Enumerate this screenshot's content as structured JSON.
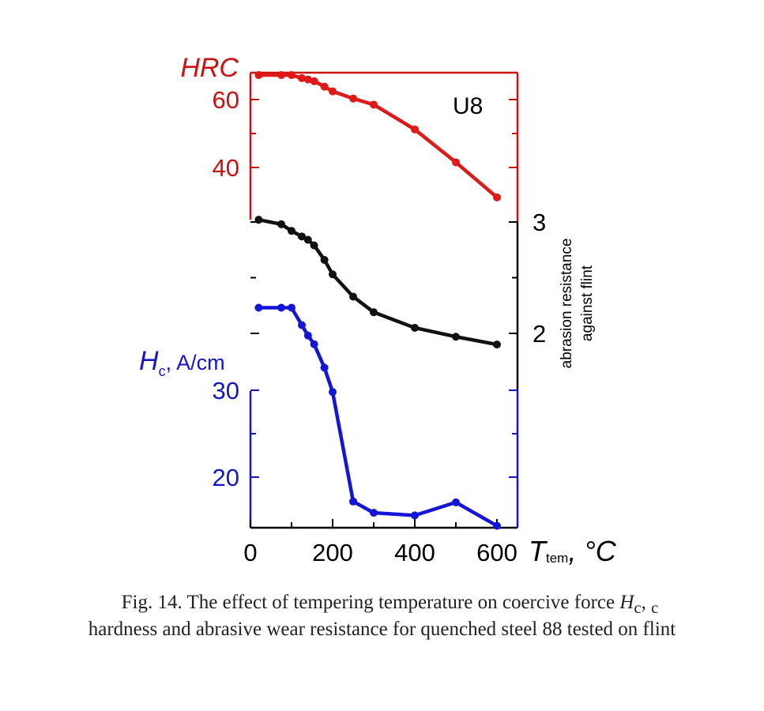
{
  "chart_data": {
    "type": "line",
    "annotation": "U8",
    "x": {
      "label_symbol": "T",
      "label_subscript": "tem",
      "label_unit": ", °C",
      "range": [
        0,
        620
      ],
      "ticks": [
        0,
        200,
        400,
        600
      ],
      "minor_ticks": [
        100,
        300,
        500
      ]
    },
    "axes": {
      "hrc": {
        "label": "HRC",
        "side": "left",
        "color": "#cc1111",
        "range": [
          30,
          69
        ],
        "ticks": [
          40,
          60
        ],
        "minor_ticks": [
          30,
          50,
          70
        ]
      },
      "abrasion": {
        "label_line1": "abrasion resistance",
        "label_line2": "against flint",
        "side": "right",
        "color": "#000000",
        "range": [
          1.6,
          3.3
        ],
        "ticks": [
          2,
          3
        ],
        "minor_ticks": [
          2.5,
          1.7
        ]
      },
      "hc": {
        "label_symbol": "H",
        "label_subscript": "c",
        "label_unit": ", A/cm",
        "side": "left",
        "color": "#1515c8",
        "range": [
          14.3,
          47
        ],
        "ticks": [
          20,
          30
        ],
        "minor_ticks": [
          25,
          35
        ]
      }
    },
    "series": [
      {
        "axis": "hrc",
        "color": "#e01818",
        "points": [
          [
            20,
            67.2
          ],
          [
            75,
            67.2
          ],
          [
            100,
            67.2
          ],
          [
            125,
            66.3
          ],
          [
            140,
            65.9
          ],
          [
            155,
            65.4
          ],
          [
            180,
            63.8
          ],
          [
            200,
            62.4
          ],
          [
            250,
            60.3
          ],
          [
            300,
            58.5
          ],
          [
            400,
            51.2
          ],
          [
            500,
            41.5
          ],
          [
            600,
            31.2
          ]
        ]
      },
      {
        "axis": "abrasion",
        "color": "#111111",
        "points": [
          [
            20,
            3.02
          ],
          [
            75,
            2.98
          ],
          [
            100,
            2.92
          ],
          [
            125,
            2.87
          ],
          [
            140,
            2.84
          ],
          [
            155,
            2.79
          ],
          [
            180,
            2.66
          ],
          [
            200,
            2.53
          ],
          [
            250,
            2.33
          ],
          [
            300,
            2.19
          ],
          [
            400,
            2.05
          ],
          [
            500,
            1.97
          ],
          [
            600,
            1.9
          ]
        ]
      },
      {
        "axis": "hc",
        "color": "#1515d8",
        "points": [
          [
            20,
            39.5
          ],
          [
            75,
            39.5
          ],
          [
            100,
            39.5
          ],
          [
            125,
            37.5
          ],
          [
            140,
            36.3
          ],
          [
            155,
            35.3
          ],
          [
            180,
            32.6
          ],
          [
            200,
            29.8
          ],
          [
            250,
            17.2
          ],
          [
            300,
            15.9
          ],
          [
            400,
            15.6
          ],
          [
            500,
            17.1
          ],
          [
            600,
            14.4
          ]
        ]
      }
    ]
  },
  "caption": {
    "line1_prefix": "Fig. 14. The effect of tempering temperature on coercive force ",
    "line1_symbol": "H",
    "line1_subscript": "c",
    "line1_suffix": ",  ",
    "line1_tail_subscript": "c",
    "line2": "hardness and abrasive wear resistance for quenched steel 88 tested on flint"
  }
}
